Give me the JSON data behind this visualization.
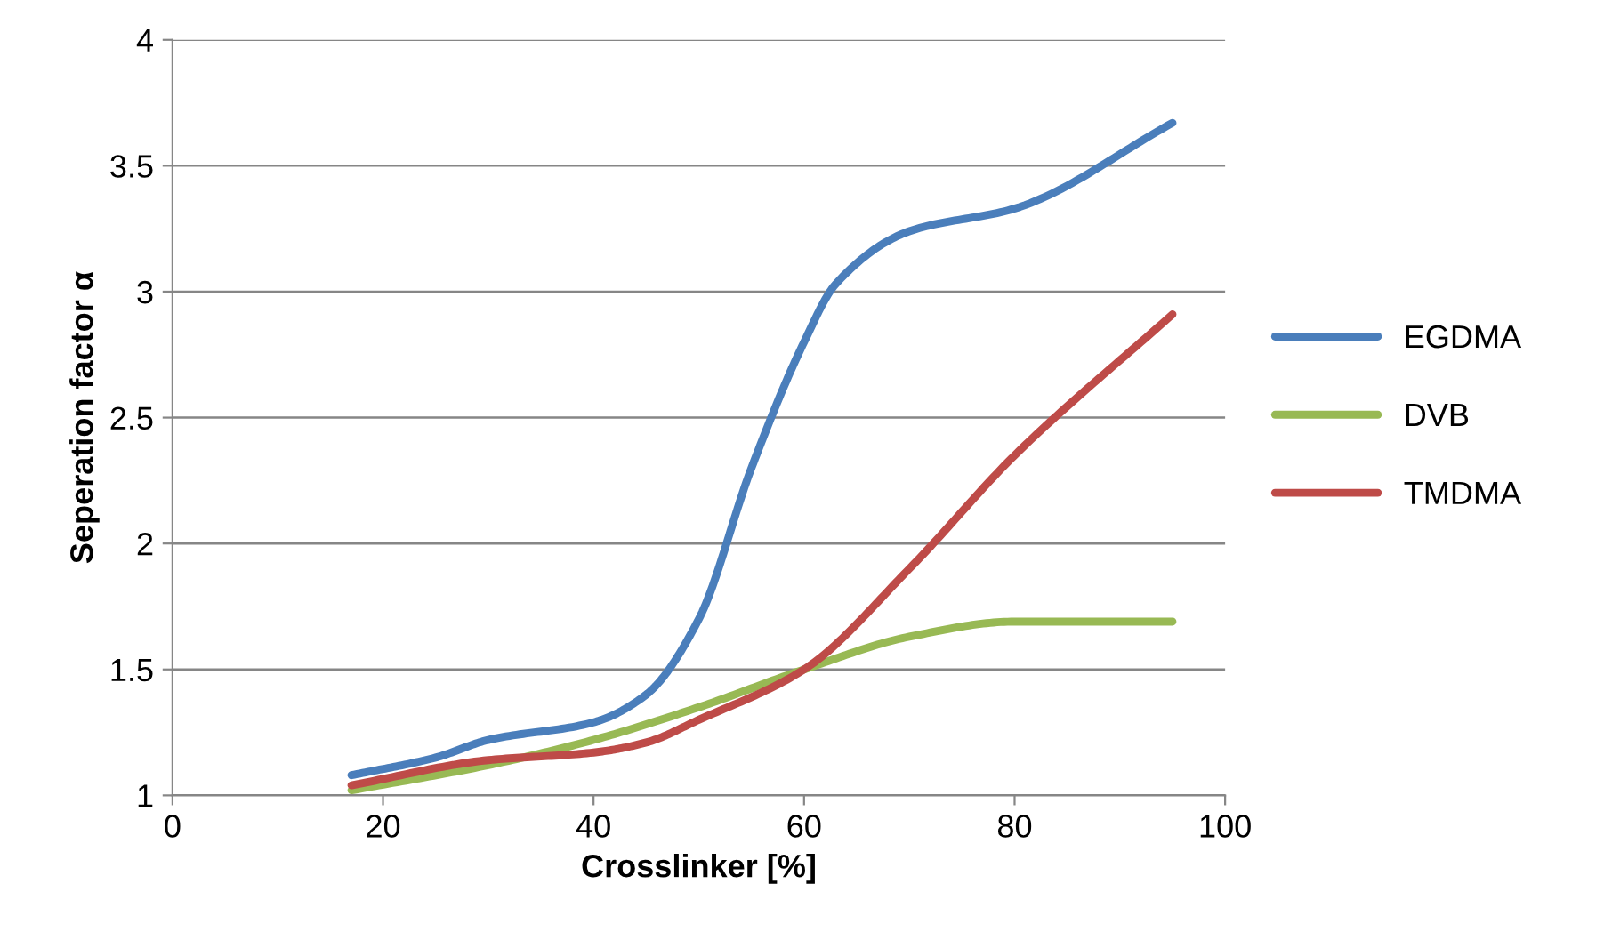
{
  "chart_data": {
    "type": "line",
    "xlabel": "Crosslinker [%]",
    "ylabel": "Seperation factor α",
    "xlim": [
      0,
      100
    ],
    "xticks": [
      0,
      20,
      40,
      60,
      80,
      100
    ],
    "ylim": [
      1,
      4
    ],
    "yticks": [
      1,
      1.5,
      2,
      2.5,
      3,
      3.5,
      4
    ],
    "grid": "y",
    "legend": "right",
    "marker": "none",
    "line_style": "solid",
    "series": [
      {
        "name": "EGDMA",
        "color": "#4a7ebb",
        "x": [
          17,
          25,
          30,
          40,
          45,
          50,
          55,
          60,
          63,
          70,
          80,
          95
        ],
        "values": [
          1.08,
          1.15,
          1.22,
          1.29,
          1.4,
          1.7,
          2.3,
          2.8,
          3.03,
          3.24,
          3.33,
          3.67
        ]
      },
      {
        "name": "DVB",
        "color": "#98b954",
        "x": [
          17,
          30,
          40,
          50,
          60,
          70,
          80,
          95
        ],
        "values": [
          1.02,
          1.12,
          1.22,
          1.35,
          1.5,
          1.63,
          1.69,
          1.69
        ]
      },
      {
        "name": "TMDMA",
        "color": "#be4b48",
        "x": [
          17,
          30,
          40,
          45,
          50,
          60,
          70,
          80,
          95
        ],
        "values": [
          1.04,
          1.14,
          1.17,
          1.21,
          1.3,
          1.5,
          1.9,
          2.35,
          2.91
        ]
      }
    ]
  }
}
